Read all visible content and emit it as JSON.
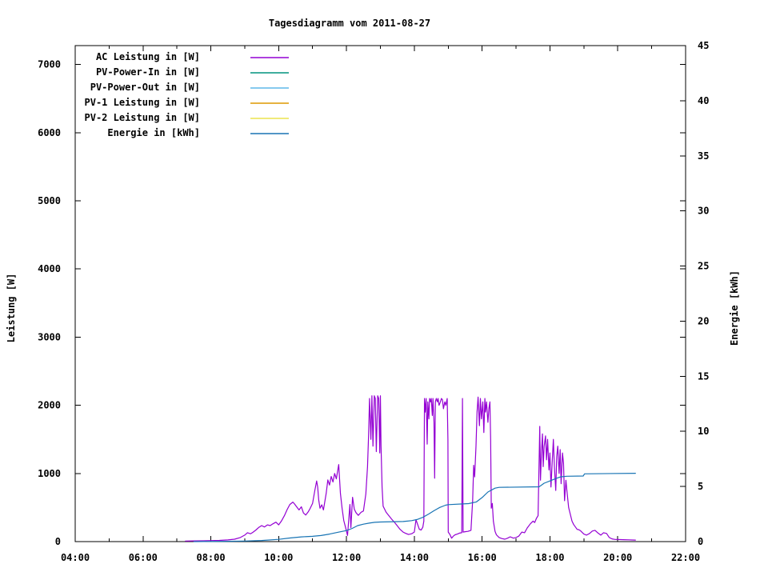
{
  "title": "Tagesdiagramm vom 2011-08-27",
  "y1_axis_label": "Leistung [W]",
  "y2_axis_label": "Energie [kWh]",
  "chart_data": {
    "type": "line",
    "title": "Tagesdiagramm vom 2011-08-27",
    "xlabel": "",
    "ylabel": "Leistung [W]",
    "y2label": "Energie [kWh]",
    "grid": false,
    "legend_position": "top-left-inside",
    "x_axis": {
      "unit": "time-of-day",
      "range_hours": [
        4,
        22
      ],
      "major_tick_hours": [
        4,
        6,
        8,
        10,
        12,
        14,
        16,
        18,
        20,
        22
      ],
      "tick_labels": [
        "04:00",
        "06:00",
        "08:00",
        "10:00",
        "12:00",
        "14:00",
        "16:00",
        "18:00",
        "20:00",
        "22:00"
      ],
      "minor_tick_every_hours": 1
    },
    "y1_axis": {
      "label": "Leistung [W]",
      "range": [
        0,
        7277
      ],
      "ticks": [
        0,
        1000,
        2000,
        3000,
        4000,
        5000,
        6000,
        7000
      ]
    },
    "y2_axis": {
      "label": "Energie [kWh]",
      "range": [
        0,
        45
      ],
      "ticks": [
        0,
        5,
        10,
        15,
        20,
        25,
        30,
        35,
        40,
        45
      ]
    },
    "series": [
      {
        "name": "AC Leistung in [W]",
        "color": "#9400d3",
        "axis": "y1",
        "points": [
          [
            7.25,
            8
          ],
          [
            7.5,
            10
          ],
          [
            7.75,
            12
          ],
          [
            8.0,
            15
          ],
          [
            8.25,
            18
          ],
          [
            8.5,
            25
          ],
          [
            8.7,
            35
          ],
          [
            8.87,
            60
          ],
          [
            9.0,
            95
          ],
          [
            9.08,
            130
          ],
          [
            9.17,
            115
          ],
          [
            9.25,
            140
          ],
          [
            9.33,
            170
          ],
          [
            9.42,
            210
          ],
          [
            9.5,
            235
          ],
          [
            9.58,
            215
          ],
          [
            9.67,
            245
          ],
          [
            9.75,
            235
          ],
          [
            9.83,
            260
          ],
          [
            9.92,
            285
          ],
          [
            10.0,
            245
          ],
          [
            10.08,
            300
          ],
          [
            10.17,
            380
          ],
          [
            10.25,
            470
          ],
          [
            10.33,
            545
          ],
          [
            10.42,
            580
          ],
          [
            10.47,
            550
          ],
          [
            10.53,
            510
          ],
          [
            10.6,
            465
          ],
          [
            10.67,
            510
          ],
          [
            10.73,
            420
          ],
          [
            10.8,
            390
          ],
          [
            10.87,
            435
          ],
          [
            10.93,
            490
          ],
          [
            11.0,
            560
          ],
          [
            11.07,
            760
          ],
          [
            11.12,
            890
          ],
          [
            11.15,
            800
          ],
          [
            11.18,
            610
          ],
          [
            11.22,
            490
          ],
          [
            11.27,
            540
          ],
          [
            11.32,
            465
          ],
          [
            11.4,
            705
          ],
          [
            11.45,
            905
          ],
          [
            11.5,
            830
          ],
          [
            11.55,
            955
          ],
          [
            11.6,
            875
          ],
          [
            11.65,
            1000
          ],
          [
            11.7,
            920
          ],
          [
            11.77,
            1130
          ],
          [
            11.82,
            710
          ],
          [
            11.87,
            490
          ],
          [
            11.92,
            310
          ],
          [
            11.97,
            215
          ],
          [
            12.03,
            90
          ],
          [
            12.1,
            545
          ],
          [
            12.13,
            205
          ],
          [
            12.18,
            650
          ],
          [
            12.23,
            475
          ],
          [
            12.28,
            425
          ],
          [
            12.35,
            385
          ],
          [
            12.43,
            430
          ],
          [
            12.5,
            450
          ],
          [
            12.57,
            700
          ],
          [
            12.62,
            1100
          ],
          [
            12.65,
            1550
          ],
          [
            12.68,
            2100
          ],
          [
            12.72,
            1500
          ],
          [
            12.75,
            2140
          ],
          [
            12.78,
            1400
          ],
          [
            12.82,
            2140
          ],
          [
            12.85,
            2100
          ],
          [
            12.88,
            1320
          ],
          [
            12.92,
            2140
          ],
          [
            12.95,
            2100
          ],
          [
            12.98,
            1300
          ],
          [
            13.0,
            2140
          ],
          [
            13.02,
            1400
          ],
          [
            13.05,
            800
          ],
          [
            13.08,
            520
          ],
          [
            13.17,
            430
          ],
          [
            13.25,
            380
          ],
          [
            13.33,
            330
          ],
          [
            13.42,
            280
          ],
          [
            13.5,
            230
          ],
          [
            13.58,
            180
          ],
          [
            13.67,
            140
          ],
          [
            13.75,
            120
          ],
          [
            13.83,
            105
          ],
          [
            13.92,
            115
          ],
          [
            14.0,
            140
          ],
          [
            14.05,
            320
          ],
          [
            14.1,
            250
          ],
          [
            14.15,
            180
          ],
          [
            14.2,
            170
          ],
          [
            14.25,
            210
          ],
          [
            14.28,
            300
          ],
          [
            14.3,
            2100
          ],
          [
            14.32,
            1900
          ],
          [
            14.35,
            2100
          ],
          [
            14.38,
            1430
          ],
          [
            14.4,
            2050
          ],
          [
            14.43,
            1800
          ],
          [
            14.45,
            2100
          ],
          [
            14.48,
            2050
          ],
          [
            14.5,
            2100
          ],
          [
            14.53,
            1850
          ],
          [
            14.55,
            2100
          ],
          [
            14.58,
            1750
          ],
          [
            14.6,
            930
          ],
          [
            14.62,
            2050
          ],
          [
            14.65,
            2100
          ],
          [
            14.68,
            2050
          ],
          [
            14.7,
            2100
          ],
          [
            14.73,
            2000
          ],
          [
            14.77,
            2050
          ],
          [
            14.8,
            2100
          ],
          [
            14.83,
            2080
          ],
          [
            14.86,
            1950
          ],
          [
            14.9,
            2050
          ],
          [
            14.93,
            2000
          ],
          [
            14.97,
            2100
          ],
          [
            14.99,
            1500
          ],
          [
            15.0,
            140
          ],
          [
            15.05,
            105
          ],
          [
            15.1,
            50
          ],
          [
            15.15,
            80
          ],
          [
            15.2,
            100
          ],
          [
            15.27,
            110
          ],
          [
            15.33,
            125
          ],
          [
            15.4,
            130
          ],
          [
            15.42,
            2100
          ],
          [
            15.44,
            140
          ],
          [
            15.5,
            145
          ],
          [
            15.58,
            150
          ],
          [
            15.67,
            165
          ],
          [
            15.72,
            600
          ],
          [
            15.75,
            1120
          ],
          [
            15.78,
            950
          ],
          [
            15.82,
            1400
          ],
          [
            15.85,
            1900
          ],
          [
            15.88,
            2120
          ],
          [
            15.92,
            1700
          ],
          [
            15.95,
            2100
          ],
          [
            15.98,
            1800
          ],
          [
            16.02,
            2050
          ],
          [
            16.05,
            1600
          ],
          [
            16.08,
            2100
          ],
          [
            16.1,
            1900
          ],
          [
            16.13,
            2050
          ],
          [
            16.17,
            1750
          ],
          [
            16.2,
            1950
          ],
          [
            16.23,
            2050
          ],
          [
            16.25,
            1500
          ],
          [
            16.27,
            490
          ],
          [
            16.3,
            560
          ],
          [
            16.33,
            300
          ],
          [
            16.38,
            150
          ],
          [
            16.42,
            100
          ],
          [
            16.5,
            60
          ],
          [
            16.58,
            45
          ],
          [
            16.67,
            35
          ],
          [
            16.75,
            50
          ],
          [
            16.83,
            70
          ],
          [
            16.92,
            50
          ],
          [
            17.0,
            60
          ],
          [
            17.08,
            80
          ],
          [
            17.17,
            140
          ],
          [
            17.25,
            130
          ],
          [
            17.33,
            200
          ],
          [
            17.42,
            260
          ],
          [
            17.5,
            300
          ],
          [
            17.55,
            280
          ],
          [
            17.6,
            340
          ],
          [
            17.65,
            380
          ],
          [
            17.7,
            1690
          ],
          [
            17.72,
            900
          ],
          [
            17.75,
            1300
          ],
          [
            17.78,
            1580
          ],
          [
            17.8,
            1100
          ],
          [
            17.83,
            1400
          ],
          [
            17.87,
            1550
          ],
          [
            17.9,
            1200
          ],
          [
            17.93,
            1500
          ],
          [
            17.97,
            1050
          ],
          [
            18.0,
            1300
          ],
          [
            18.03,
            800
          ],
          [
            18.07,
            1200
          ],
          [
            18.1,
            1500
          ],
          [
            18.13,
            1100
          ],
          [
            18.17,
            750
          ],
          [
            18.2,
            1250
          ],
          [
            18.23,
            1400
          ],
          [
            18.27,
            1000
          ],
          [
            18.3,
            1350
          ],
          [
            18.33,
            850
          ],
          [
            18.37,
            1300
          ],
          [
            18.4,
            1150
          ],
          [
            18.43,
            600
          ],
          [
            18.47,
            900
          ],
          [
            18.5,
            750
          ],
          [
            18.55,
            500
          ],
          [
            18.6,
            400
          ],
          [
            18.65,
            300
          ],
          [
            18.7,
            250
          ],
          [
            18.8,
            180
          ],
          [
            18.85,
            175
          ],
          [
            18.9,
            160
          ],
          [
            19.0,
            110
          ],
          [
            19.08,
            95
          ],
          [
            19.17,
            120
          ],
          [
            19.25,
            155
          ],
          [
            19.33,
            165
          ],
          [
            19.42,
            125
          ],
          [
            19.5,
            95
          ],
          [
            19.58,
            130
          ],
          [
            19.67,
            120
          ],
          [
            19.75,
            60
          ],
          [
            19.83,
            40
          ],
          [
            19.92,
            32
          ],
          [
            20.0,
            30
          ],
          [
            20.17,
            28
          ],
          [
            20.33,
            26
          ],
          [
            20.52,
            22
          ]
        ]
      },
      {
        "name": "PV-Power-In in [W]",
        "color": "#00947e",
        "axis": "y1",
        "points": []
      },
      {
        "name": "PV-Power-Out in [W]",
        "color": "#5fb8e8",
        "axis": "y1",
        "points": []
      },
      {
        "name": "PV-1 Leistung in [W]",
        "color": "#dd9800",
        "axis": "y1",
        "points": []
      },
      {
        "name": "PV-2 Leistung in [W]",
        "color": "#ece44e",
        "axis": "y1",
        "points": []
      },
      {
        "name": "Energie in [kWh]",
        "color": "#1874b4",
        "axis": "y2",
        "points": [
          [
            7.5,
            0
          ],
          [
            8.5,
            0.03
          ],
          [
            9.0,
            0.05
          ],
          [
            9.5,
            0.1
          ],
          [
            10.0,
            0.2
          ],
          [
            10.33,
            0.33
          ],
          [
            10.67,
            0.43
          ],
          [
            11.0,
            0.48
          ],
          [
            11.25,
            0.55
          ],
          [
            11.5,
            0.68
          ],
          [
            11.75,
            0.85
          ],
          [
            12.0,
            1.0
          ],
          [
            12.17,
            1.2
          ],
          [
            12.33,
            1.45
          ],
          [
            12.5,
            1.58
          ],
          [
            12.67,
            1.68
          ],
          [
            12.83,
            1.75
          ],
          [
            13.0,
            1.78
          ],
          [
            13.67,
            1.82
          ],
          [
            13.92,
            1.9
          ],
          [
            14.08,
            2.0
          ],
          [
            14.25,
            2.2
          ],
          [
            14.42,
            2.5
          ],
          [
            14.58,
            2.8
          ],
          [
            14.75,
            3.1
          ],
          [
            14.92,
            3.3
          ],
          [
            15.0,
            3.35
          ],
          [
            15.6,
            3.45
          ],
          [
            15.83,
            3.6
          ],
          [
            16.0,
            4.0
          ],
          [
            16.17,
            4.5
          ],
          [
            16.38,
            4.85
          ],
          [
            16.5,
            4.92
          ],
          [
            17.68,
            4.97
          ],
          [
            17.83,
            5.3
          ],
          [
            18.0,
            5.5
          ],
          [
            18.17,
            5.72
          ],
          [
            18.32,
            5.88
          ],
          [
            18.5,
            5.93
          ],
          [
            18.98,
            5.95
          ],
          [
            19.02,
            6.15
          ],
          [
            20.52,
            6.2
          ]
        ]
      }
    ]
  }
}
